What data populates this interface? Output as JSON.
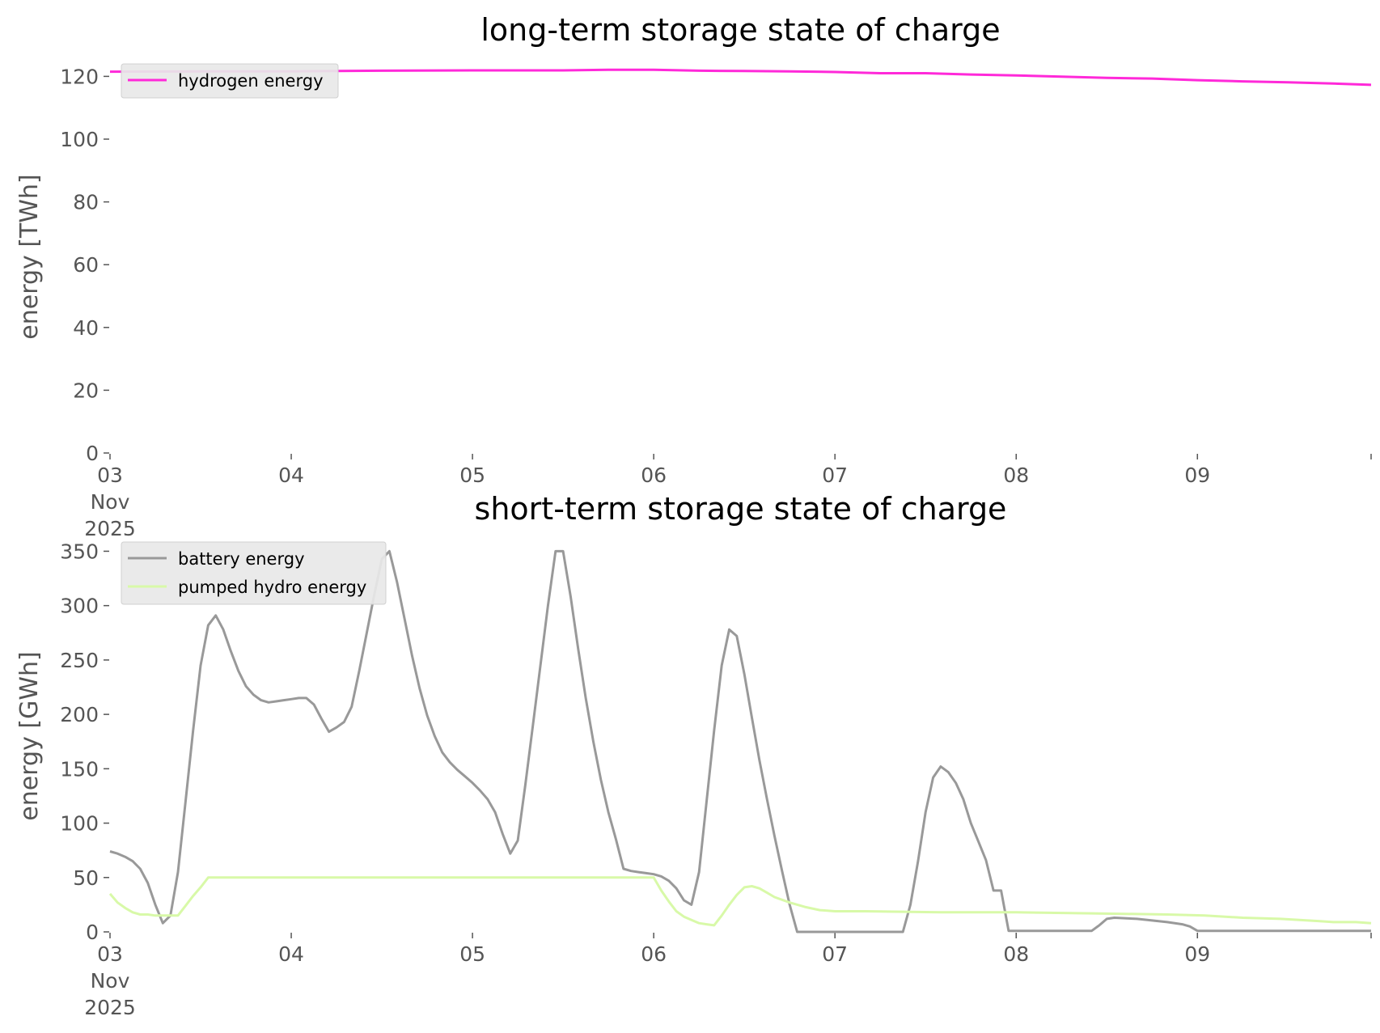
{
  "chart_data": [
    {
      "type": "line",
      "title": "long-term storage state of charge",
      "ylabel": "energy [TWh]",
      "ylim": [
        0,
        125
      ],
      "yticks": [
        0,
        20,
        40,
        60,
        80,
        100,
        120
      ],
      "xlim": [
        0,
        167
      ],
      "x_unit": "hours since 2025-11-03 00:00",
      "xticks": [
        {
          "x": 0,
          "lines": [
            "03",
            "Nov",
            "2025"
          ]
        },
        {
          "x": 24,
          "lines": [
            "04"
          ]
        },
        {
          "x": 48,
          "lines": [
            "05"
          ]
        },
        {
          "x": 72,
          "lines": [
            "06"
          ]
        },
        {
          "x": 96,
          "lines": [
            "07"
          ]
        },
        {
          "x": 120,
          "lines": [
            "08"
          ]
        },
        {
          "x": 144,
          "lines": [
            "09"
          ]
        }
      ],
      "legend_position": "top-left",
      "grid": false,
      "series": [
        {
          "name": "hydrogen energy",
          "color": "#ff29d9",
          "points": [
            [
              0,
              121.5
            ],
            [
              12,
              121.6
            ],
            [
              24,
              121.6
            ],
            [
              36,
              121.8
            ],
            [
              48,
              121.9
            ],
            [
              60,
              121.9
            ],
            [
              66,
              122.1
            ],
            [
              72,
              122.1
            ],
            [
              78,
              121.8
            ],
            [
              84,
              121.7
            ],
            [
              90,
              121.6
            ],
            [
              96,
              121.4
            ],
            [
              102,
              121.0
            ],
            [
              108,
              121.0
            ],
            [
              114,
              120.6
            ],
            [
              120,
              120.3
            ],
            [
              126,
              119.9
            ],
            [
              132,
              119.5
            ],
            [
              138,
              119.3
            ],
            [
              144,
              118.8
            ],
            [
              150,
              118.4
            ],
            [
              156,
              118.1
            ],
            [
              162,
              117.7
            ],
            [
              167,
              117.3
            ]
          ]
        }
      ]
    },
    {
      "type": "line",
      "title": "short-term storage state of charge",
      "ylabel": "energy [GWh]",
      "ylim": [
        0,
        360
      ],
      "yticks": [
        0,
        50,
        100,
        150,
        200,
        250,
        300,
        350
      ],
      "xlim": [
        0,
        167
      ],
      "x_unit": "hours since 2025-11-03 00:00",
      "xticks": [
        {
          "x": 0,
          "lines": [
            "03",
            "Nov",
            "2025"
          ]
        },
        {
          "x": 24,
          "lines": [
            "04"
          ]
        },
        {
          "x": 48,
          "lines": [
            "05"
          ]
        },
        {
          "x": 72,
          "lines": [
            "06"
          ]
        },
        {
          "x": 96,
          "lines": [
            "07"
          ]
        },
        {
          "x": 120,
          "lines": [
            "08"
          ]
        },
        {
          "x": 144,
          "lines": [
            "09"
          ]
        }
      ],
      "legend_position": "top-left",
      "grid": false,
      "series": [
        {
          "name": "battery energy",
          "color": "#999999",
          "points": [
            [
              0,
              74
            ],
            [
              1,
              72
            ],
            [
              2,
              69
            ],
            [
              3,
              65
            ],
            [
              4,
              58
            ],
            [
              5,
              45
            ],
            [
              6,
              25
            ],
            [
              7,
              8
            ],
            [
              8,
              15
            ],
            [
              9,
              55
            ],
            [
              10,
              120
            ],
            [
              11,
              185
            ],
            [
              12,
              245
            ],
            [
              13,
              282
            ],
            [
              14,
              291
            ],
            [
              15,
              278
            ],
            [
              16,
              258
            ],
            [
              17,
              240
            ],
            [
              18,
              226
            ],
            [
              19,
              218
            ],
            [
              20,
              213
            ],
            [
              21,
              211
            ],
            [
              22,
              212
            ],
            [
              23,
              213
            ],
            [
              24,
              214
            ],
            [
              25,
              215
            ],
            [
              26,
              215
            ],
            [
              27,
              209
            ],
            [
              28,
              196
            ],
            [
              29,
              184
            ],
            [
              30,
              188
            ],
            [
              31,
              193
            ],
            [
              32,
              207
            ],
            [
              33,
              240
            ],
            [
              34,
              275
            ],
            [
              35,
              310
            ],
            [
              36,
              343
            ],
            [
              37,
              350
            ],
            [
              38,
              322
            ],
            [
              39,
              288
            ],
            [
              40,
              254
            ],
            [
              41,
              224
            ],
            [
              42,
              199
            ],
            [
              43,
              180
            ],
            [
              44,
              165
            ],
            [
              45,
              156
            ],
            [
              46,
              149
            ],
            [
              47,
              143
            ],
            [
              48,
              137
            ],
            [
              49,
              130
            ],
            [
              50,
              122
            ],
            [
              51,
              110
            ],
            [
              52,
              90
            ],
            [
              53,
              72
            ],
            [
              54,
              84
            ],
            [
              55,
              135
            ],
            [
              56,
              190
            ],
            [
              57,
              245
            ],
            [
              58,
              300
            ],
            [
              59,
              350
            ],
            [
              60,
              350
            ],
            [
              61,
              308
            ],
            [
              62,
              260
            ],
            [
              63,
              215
            ],
            [
              64,
              175
            ],
            [
              65,
              140
            ],
            [
              66,
              110
            ],
            [
              67,
              85
            ],
            [
              68,
              58
            ],
            [
              69,
              56
            ],
            [
              70,
              55
            ],
            [
              71,
              54
            ],
            [
              72,
              53
            ],
            [
              73,
              51
            ],
            [
              74,
              47
            ],
            [
              75,
              40
            ],
            [
              76,
              29
            ],
            [
              77,
              25
            ],
            [
              78,
              55
            ],
            [
              79,
              120
            ],
            [
              80,
              185
            ],
            [
              81,
              245
            ],
            [
              82,
              278
            ],
            [
              83,
              272
            ],
            [
              84,
              237
            ],
            [
              85,
              197
            ],
            [
              86,
              158
            ],
            [
              87,
              122
            ],
            [
              88,
              88
            ],
            [
              89,
              56
            ],
            [
              90,
              25
            ],
            [
              91,
              0
            ],
            [
              105,
              0
            ],
            [
              106,
              25
            ],
            [
              107,
              65
            ],
            [
              108,
              110
            ],
            [
              109,
              142
            ],
            [
              110,
              152
            ],
            [
              111,
              147
            ],
            [
              112,
              137
            ],
            [
              113,
              122
            ],
            [
              114,
              100
            ],
            [
              115,
              83
            ],
            [
              116,
              66
            ],
            [
              117,
              38
            ],
            [
              118,
              38
            ],
            [
              119,
              1
            ],
            [
              130,
              1
            ],
            [
              131,
              6
            ],
            [
              132,
              12
            ],
            [
              133,
              13
            ],
            [
              136,
              12
            ],
            [
              140,
              9
            ],
            [
              142,
              7
            ],
            [
              143,
              5
            ],
            [
              144,
              1
            ],
            [
              167,
              1
            ]
          ]
        },
        {
          "name": "pumped hydro energy",
          "color": "#d8f9a8",
          "points": [
            [
              0,
              35
            ],
            [
              1,
              27
            ],
            [
              2,
              22
            ],
            [
              3,
              18
            ],
            [
              4,
              16
            ],
            [
              5,
              16
            ],
            [
              6,
              15
            ],
            [
              7,
              15
            ],
            [
              8,
              15
            ],
            [
              9,
              15
            ],
            [
              10,
              24
            ],
            [
              11,
              33
            ],
            [
              12,
              41
            ],
            [
              13,
              50
            ],
            [
              72,
              50
            ],
            [
              73,
              38
            ],
            [
              74,
              28
            ],
            [
              75,
              19
            ],
            [
              76,
              14
            ],
            [
              77,
              11
            ],
            [
              78,
              8
            ],
            [
              79,
              7
            ],
            [
              80,
              6
            ],
            [
              81,
              15
            ],
            [
              82,
              25
            ],
            [
              83,
              34
            ],
            [
              84,
              41
            ],
            [
              85,
              42
            ],
            [
              86,
              40
            ],
            [
              87,
              36
            ],
            [
              88,
              32
            ],
            [
              90,
              27
            ],
            [
              92,
              23
            ],
            [
              94,
              20
            ],
            [
              96,
              19
            ],
            [
              100,
              19
            ],
            [
              110,
              18
            ],
            [
              120,
              18
            ],
            [
              130,
              17
            ],
            [
              140,
              16
            ],
            [
              145,
              15
            ],
            [
              150,
              13
            ],
            [
              155,
              12
            ],
            [
              160,
              10
            ],
            [
              162,
              9
            ],
            [
              165,
              9
            ],
            [
              167,
              8
            ]
          ]
        }
      ]
    }
  ]
}
